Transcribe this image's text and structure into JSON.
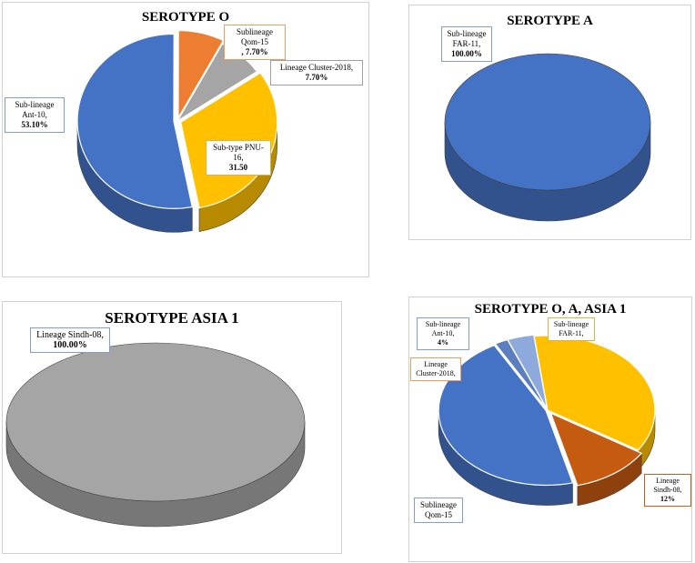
{
  "chart_data": [
    {
      "type": "pie",
      "title": "SEROTYPE O",
      "slices": [
        {
          "label": "Sub-lineage Ant-10, 53.10%",
          "value": 53.1,
          "color": "#4472C4"
        },
        {
          "label": "Sublineage Qom-15 , 7.70%",
          "value": 7.7,
          "color": "#ED7D31"
        },
        {
          "label": "Lineage Cluster-2018, 7.70%",
          "value": 7.7,
          "color": "#A5A5A5"
        },
        {
          "label": "Sub-type PNU-16, 31.50",
          "value": 31.5,
          "color": "#FFC000"
        }
      ]
    },
    {
      "type": "pie",
      "title": "SEROTYPE A",
      "slices": [
        {
          "label": "Sub-lineage FAR-11, 100.00%",
          "value": 100,
          "color": "#4472C4"
        }
      ]
    },
    {
      "type": "pie",
      "title": "SEROTYPE ASIA 1",
      "slices": [
        {
          "label": "Lineage Sindh-08, 100.00%",
          "value": 100,
          "color": "#A5A5A5"
        }
      ]
    },
    {
      "type": "pie",
      "title": "SEROTYPE O, A, ASIA 1",
      "slices": [
        {
          "label": "Sub-lineage Ant-10, 4%",
          "value": 4,
          "color": "#8EA9DB"
        },
        {
          "label": "Sub-lineage FAR-11,",
          "value": 36,
          "color": "#FFC000"
        },
        {
          "label": "Lineage Sindh-08, 12%",
          "value": 12,
          "color": "#C55A11"
        },
        {
          "label": "Sublineage Qom-15",
          "value": 46,
          "color": "#4472C4"
        },
        {
          "label": "Lineage Cluster-2018,",
          "value": 2,
          "color": "#5B7FBF"
        }
      ]
    }
  ],
  "callouts": {
    "p1": {
      "ant10": {
        "name": "Sub-lineage Ant-10,",
        "pct": "53.10%"
      },
      "qom15": {
        "name": "Sublineage Qom-15",
        "pct": ", 7.70%"
      },
      "cluster": {
        "name": "Lineage Cluster-2018,",
        "pct": "7.70%"
      },
      "pnu16": {
        "name": "Sub-type PNU-16,",
        "pct": "31.50"
      }
    },
    "p2": {
      "far11": {
        "name": "Sub-lineage FAR-11,",
        "pct": "100.00%"
      }
    },
    "p3": {
      "sindh": {
        "name": "Lineage Sindh-08,",
        "pct": "100.00%"
      }
    },
    "p4": {
      "ant10": {
        "name": "Sub-lineage Ant-10,",
        "pct": "4%"
      },
      "far11": {
        "name": "Sub-lineage FAR-11,",
        "pct": ""
      },
      "cluster": {
        "name": "Lineage Cluster-2018,",
        "pct": ""
      },
      "sindh": {
        "name": "Lineage Sindh-08,",
        "pct": "12%"
      },
      "qom15": {
        "name": "Sublineage Qom-15",
        "pct": ""
      }
    }
  }
}
